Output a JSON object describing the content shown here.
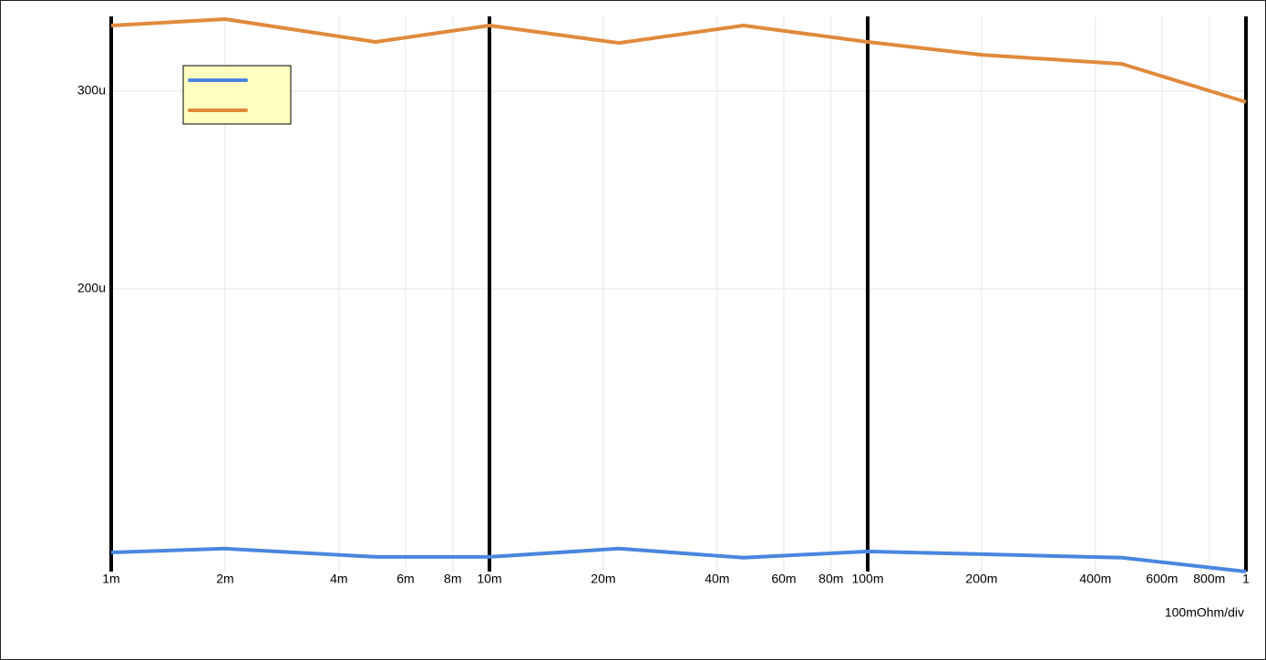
{
  "chart_data": {
    "type": "line",
    "x_label": "100mOhm/div",
    "x_scale": "log",
    "x": [
      0.001,
      0.002,
      0.005,
      0.01,
      0.022,
      0.047,
      0.1,
      0.2,
      0.47,
      1
    ],
    "series": [
      {
        "color": "#4a86e0",
        "values": [
          6.68e-05,
          6.87e-05,
          6.45e-05,
          6.45e-05,
          6.87e-05,
          6.41e-05,
          6.73e-05,
          6.59e-05,
          6.41e-05,
          5.71e-05
        ]
      },
      {
        "color": "#e08a3c",
        "values": [
          0.0003332,
          0.0003364,
          0.0003249,
          0.0003332,
          0.0003244,
          0.0003332,
          0.0003249,
          0.0003184,
          0.0003138,
          0.0002945
        ]
      }
    ],
    "xlim": [
      0.001,
      1
    ],
    "ylim": [
      5.71e-05,
      0.0003378
    ],
    "xticks": [
      {
        "value": 0.001,
        "label": "1m"
      },
      {
        "value": 0.002,
        "label": "2m"
      },
      {
        "value": 0.004,
        "label": "4m"
      },
      {
        "value": 0.006,
        "label": "6m"
      },
      {
        "value": 0.008,
        "label": "8m"
      },
      {
        "value": 0.01,
        "label": "10m"
      },
      {
        "value": 0.02,
        "label": "20m"
      },
      {
        "value": 0.04,
        "label": "40m"
      },
      {
        "value": 0.06,
        "label": "60m"
      },
      {
        "value": 0.08,
        "label": "80m"
      },
      {
        "value": 0.1,
        "label": "100m"
      },
      {
        "value": 0.2,
        "label": "200m"
      },
      {
        "value": 0.4,
        "label": "400m"
      },
      {
        "value": 0.6,
        "label": "600m"
      },
      {
        "value": 0.8,
        "label": "800m"
      },
      1
    ],
    "yticks": [
      {
        "value": 0.0002,
        "label": "200u"
      },
      {
        "value": 0.0003,
        "label": "300u"
      }
    ],
    "grid": true,
    "legend": "upper-left",
    "legend_color": "#ffffc0"
  }
}
